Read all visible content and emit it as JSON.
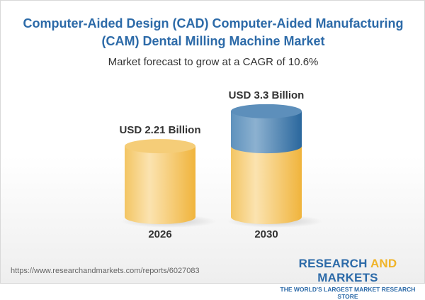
{
  "title_line1": "Computer-Aided Design (CAD) Computer-Aided Manufacturing",
  "title_line2": "(CAM) Dental Milling Machine Market",
  "subtitle": "Market forecast to grow at a CAGR of 10.6%",
  "url": "https://www.researchandmarkets.com/reports/6027083",
  "logo": {
    "research": "RESEARCH",
    "and": "AND",
    "markets": "MARKETS",
    "tagline": "THE WORLD'S LARGEST MARKET RESEARCH STORE"
  },
  "colors": {
    "title": "#2c6aa8",
    "base": "#f2c05a",
    "growth": "#3f7bb0"
  },
  "chart_data": {
    "type": "bar",
    "style": "3d-cylinder",
    "categories": [
      "2026",
      "2030"
    ],
    "values": [
      2.21,
      3.3
    ],
    "unit": "USD Billion",
    "data_labels": [
      "USD 2.21 Billion",
      "USD 3.3 Billion"
    ],
    "title": "Market forecast to grow at a CAGR of 10.6%",
    "cagr": "10.6%"
  }
}
